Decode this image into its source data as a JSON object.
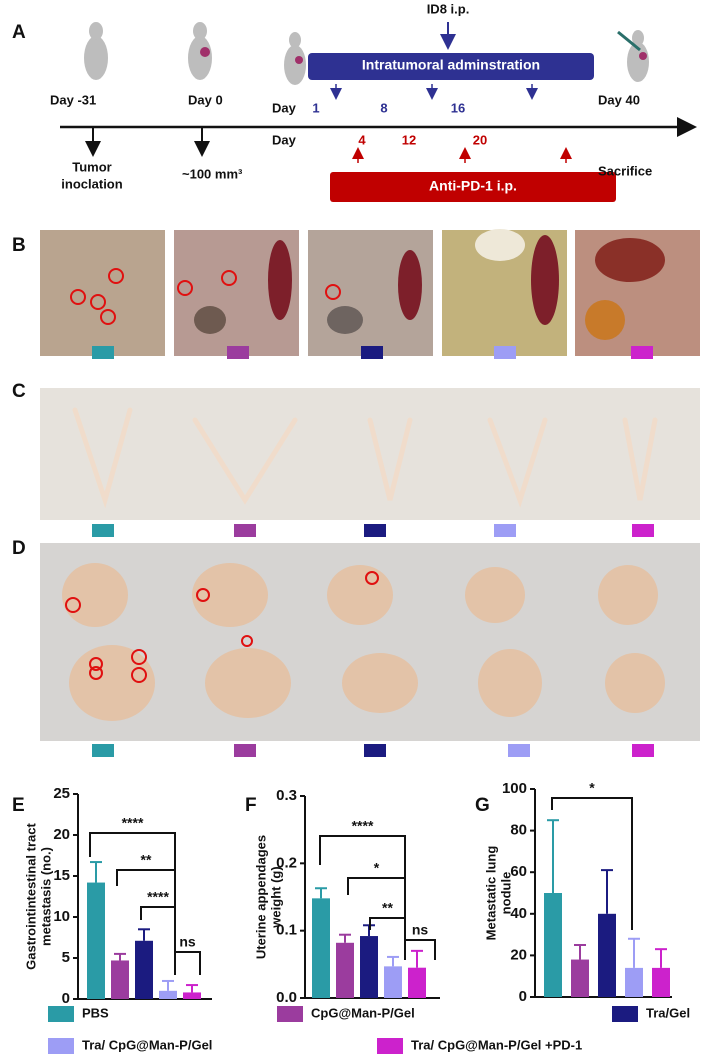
{
  "panels": [
    "A",
    "B",
    "C",
    "D",
    "E",
    "F",
    "G"
  ],
  "timeline": {
    "id8": "ID8 i.p.",
    "intratumoral": "Intratumoral adminstration",
    "day_m31": "Day -31",
    "day_0": "Day 0",
    "day_40": "Day 40",
    "day_row1": "Day",
    "days_intratumoral": [
      "1",
      "8",
      "16"
    ],
    "day_row2": "Day",
    "days_pd1": [
      "4",
      "12",
      "20"
    ],
    "tumor": [
      "Tumor",
      "inoclation"
    ],
    "volume": "~100 mm³",
    "sacrifice": "Sacrifice",
    "anti_pd1": "Anti-PD-1 i.p."
  },
  "groups": [
    {
      "name": "PBS",
      "color": "#2a9ba6"
    },
    {
      "name": "CpG@Man-P/Gel",
      "color": "#9b3c9e"
    },
    {
      "name": "Tra/Gel",
      "color": "#1b1b80"
    },
    {
      "name": "Tra/ CpG@Man-P/Gel",
      "color": "#9d9df5"
    },
    {
      "name": "Tra/ CpG@Man-P/Gel +PD-1",
      "color": "#cc22cc"
    }
  ],
  "chart_data": [
    {
      "type": "bar",
      "ylabel": [
        "Gastrointintestinal tract",
        "metastasis (no.)"
      ],
      "values": [
        14.2,
        4.7,
        7.1,
        1.0,
        0.8
      ],
      "errors": [
        2.5,
        0.8,
        1.4,
        1.2,
        0.9
      ],
      "ylim": [
        0,
        25
      ],
      "yticks": [
        0,
        5,
        10,
        15,
        20,
        25
      ],
      "annotations": [
        "****",
        "**",
        "****",
        "ns"
      ]
    },
    {
      "type": "bar",
      "ylabel": [
        "Uterine appendages",
        "weight (g)"
      ],
      "values": [
        0.148,
        0.082,
        0.092,
        0.047,
        0.045
      ],
      "errors": [
        0.015,
        0.012,
        0.016,
        0.014,
        0.025
      ],
      "ylim": [
        0,
        0.3
      ],
      "yticks": [
        {
          "value": 0,
          "label": "0.0"
        },
        0.1,
        0.2,
        0.3
      ],
      "annotations": [
        "****",
        "*",
        "**",
        "ns"
      ]
    },
    {
      "type": "bar",
      "ylabel": [
        "Metastatic lung",
        "nodule"
      ],
      "values": [
        50,
        18,
        40,
        14,
        14
      ],
      "errors": [
        35,
        7,
        21,
        14,
        9
      ],
      "ylim": [
        0,
        100
      ],
      "yticks": [
        0,
        20,
        40,
        60,
        80,
        100
      ],
      "annotations": [
        "*"
      ]
    }
  ]
}
